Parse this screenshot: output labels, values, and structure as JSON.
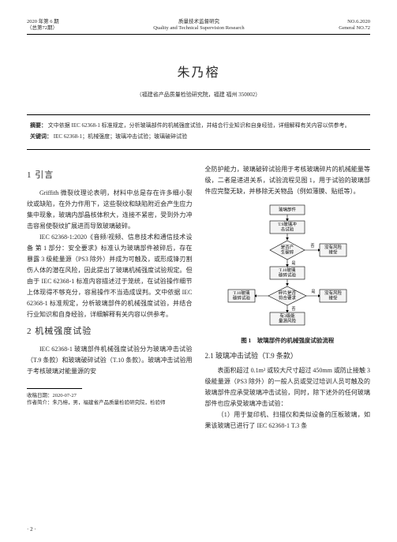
{
  "header": {
    "left1": "2020 年第 6 期",
    "left2": "（总第72期）",
    "center1": "质量技术监督研究",
    "center2": "Quality and Technical Supervision Research",
    "right1": "NO.6.2020",
    "right2": "General NO.72"
  },
  "title": "朱乃榕",
  "affiliation": "（福建省产品质量检验研究院，福建 福州 350002）",
  "abstract": {
    "label_abs": "摘要：",
    "abs_text": "文中依据 IEC 62368-1 标准规定，分析玻璃部件的机械强度试验，并结合行业知识和自身经验，详细解释有关内容以供参考。",
    "label_kw": "关键词：",
    "kw_text": "IEC 62368-1；机械强度；玻璃冲击试验；玻璃破碎试验"
  },
  "sec1": {
    "heading": "1 引言",
    "p1": "Griffith 微裂纹理论表明，材料中总是存在许多细小裂纹或缺陷，在外力作用下，这些裂纹和缺陷附近会产生应力集中现象，玻璃内部晶核体积大，连接不紧密，受到外力冲击容易使裂纹扩展进而导致玻璃破碎。",
    "p2": "IEC 62368-1:2020《音频/视频、信息技术和通信技术设备 第 1 部分：安全要求》标准认为玻璃部件被碎后，存在暴露 3 级能量源（PS3 除外）并成为可触及，或形成锋刃割伤人体的潜在风险，因此提出了玻璃机械强度试验规定。但由于 IEC 62368-1 标准内容描述过于笼统，在试验操作细节上体现得不够充分，容易操作不当造成误判。文中依据 IEC 62368-1 标准规定，分析玻璃部件的机械强度试验，并结合行业知识和自身经验，详细解释有关内容以供参考。"
  },
  "sec2": {
    "heading": "2 机械强度试验",
    "p1": "IEC 62368-1 玻璃部件机械强度试验分为玻璃冲击试验（T.9 条款）和玻璃破碎试验（T.10 条款）。玻璃冲击试验用于考核玻璃对能量源的安",
    "p2_right": "全防护能力，玻璃破碎试验用于考核玻璃碎片的机械能量等级，二者是递进关系，试验流程见图 1，用于试验的玻璃部件应完整无缺，并移除无关物品（例如薄膜、贴纸等）。"
  },
  "fig1": {
    "caption": "图 1　玻璃部件的机械强度试验流程",
    "nodes": {
      "n1": "玻璃部件",
      "n2": "T.9玻璃冲\n击试验",
      "n3": "是否产\n生破碎",
      "n4": "没有风险\n接受",
      "n5": "T.10玻璃\n破碎试验",
      "n6": "碎片是否\n符合要求",
      "n7": "有3级能\n量源风险",
      "n8": "T.10玻璃\n破碎试验"
    },
    "edge_labels": {
      "yes": "是",
      "no": "否"
    },
    "colors": {
      "node_fill": "#f4f4f4",
      "node_stroke": "#000000",
      "edge": "#000000",
      "bg": "#ffffff",
      "text": "#000000"
    },
    "stroke_width": 0.6,
    "font_size": 5.5
  },
  "sec21": {
    "heading": "2.1 玻璃冲击试验（T.9 条款）",
    "p1": "表面积超过 0.1m² 或较大尺寸超过 450mm 或防止接触 3 级能量源（PS3 除外）的一般人员或受过培训人员可触及的玻璃部件应承受玻璃冲击试验，同时，除下述外的任何玻璃部件也应承受玻璃冲击试验：",
    "p2": "（1）用于复印机、扫描仪和类似设备的压板玻璃，如果该玻璃已进行了 IEC 62368-1 T.3 条"
  },
  "footnotes": {
    "f1": "收稿日期：2020-07-27",
    "f2": "作者简介：朱乃榕，男，福建省产品质量检验研究院，检验师"
  },
  "pagenum": "· 2 ·"
}
